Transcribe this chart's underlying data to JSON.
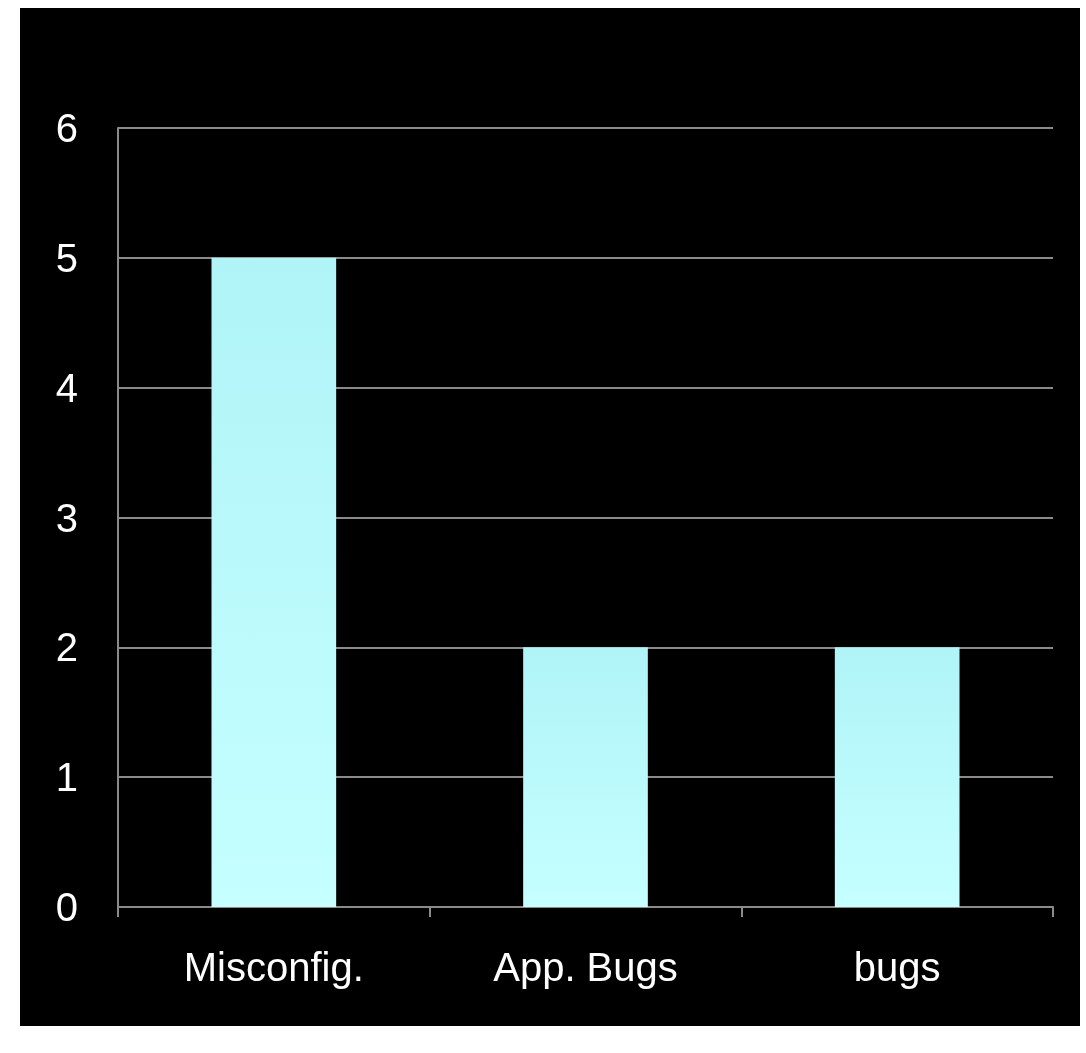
{
  "chart_data": {
    "type": "bar",
    "categories": [
      "Misconfig.",
      "App. Bugs",
      "bugs"
    ],
    "values": [
      5,
      2,
      2
    ],
    "color": "#b0f4f7",
    "ylim": [
      0,
      6
    ],
    "yticks": [
      0,
      1,
      2,
      3,
      4,
      5,
      6
    ],
    "grid": "y"
  }
}
